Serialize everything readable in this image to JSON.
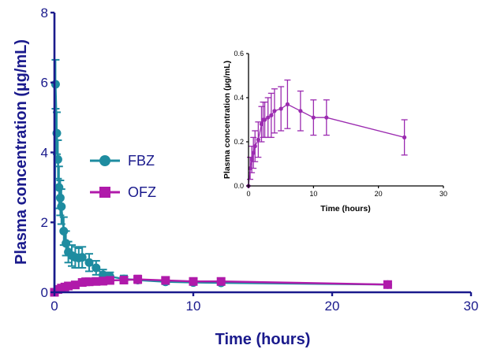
{
  "chart_data": [
    {
      "type": "line",
      "title": "",
      "xlabel": "Time (hours)",
      "ylabel": "Plasma concentration (µg/mL)",
      "xlim": [
        0,
        30
      ],
      "ylim": [
        0,
        8
      ],
      "xticks": [
        0,
        10,
        20,
        30
      ],
      "yticks": [
        0,
        2,
        4,
        6,
        8
      ],
      "grid": false,
      "legend": "center-left",
      "series": [
        {
          "name": "FBZ",
          "color": "#1e8ca0",
          "marker": "circle",
          "x": [
            0,
            0.08,
            0.17,
            0.25,
            0.33,
            0.42,
            0.5,
            0.67,
            0.83,
            1,
            1.25,
            1.5,
            1.75,
            2,
            2.5,
            3,
            3.5,
            4,
            5,
            6,
            8,
            10,
            12,
            24
          ],
          "y": [
            0,
            5.95,
            4.55,
            3.8,
            3.0,
            2.7,
            2.45,
            1.75,
            1.4,
            1.15,
            1.05,
            1.0,
            0.98,
            1.0,
            0.85,
            0.7,
            0.5,
            0.45,
            0.38,
            0.35,
            0.3,
            0.28,
            0.27,
            0.22
          ],
          "error": [
            0,
            0.7,
            0.6,
            0.55,
            0.6,
            0.5,
            0.5,
            0.4,
            0.35,
            0.3,
            0.3,
            0.3,
            0.28,
            0.3,
            0.25,
            0.2,
            0.15,
            0.12,
            0.1,
            0.08,
            0.07,
            0.06,
            0.06,
            0.05
          ]
        },
        {
          "name": "OFZ",
          "color": "#b01aaa",
          "marker": "square",
          "x": [
            0,
            0.25,
            0.5,
            0.75,
            1,
            1.5,
            2,
            2.25,
            2.5,
            3,
            3.5,
            4,
            5,
            6,
            8,
            10,
            12,
            24
          ],
          "y": [
            0,
            0.08,
            0.12,
            0.15,
            0.18,
            0.21,
            0.28,
            0.3,
            0.3,
            0.31,
            0.32,
            0.34,
            0.35,
            0.37,
            0.34,
            0.31,
            0.31,
            0.22
          ],
          "error": [
            0,
            0.05,
            0.06,
            0.07,
            0.07,
            0.08,
            0.08,
            0.08,
            0.08,
            0.09,
            0.1,
            0.1,
            0.1,
            0.11,
            0.09,
            0.08,
            0.08,
            0.08
          ]
        }
      ]
    },
    {
      "type": "line",
      "title": "",
      "xlabel": "Time (hours)",
      "ylabel": "Plasma concentration (µg/mL)",
      "xlim": [
        0,
        30
      ],
      "ylim": [
        0,
        0.6
      ],
      "xticks": [
        0,
        10,
        20,
        30
      ],
      "yticks": [
        0.0,
        0.2,
        0.4,
        0.6
      ],
      "ytick_labels": [
        "0.0",
        "0.2",
        "0.4",
        "0.6"
      ],
      "grid": false,
      "legend": "none",
      "series": [
        {
          "color": "#9b2bb0",
          "marker": "circle",
          "x": [
            0,
            0.25,
            0.5,
            0.75,
            1,
            1.5,
            2,
            2.25,
            2.5,
            3,
            3.5,
            4,
            5,
            6,
            8,
            10,
            12,
            24
          ],
          "y": [
            0,
            0.08,
            0.12,
            0.15,
            0.18,
            0.21,
            0.28,
            0.3,
            0.3,
            0.31,
            0.32,
            0.34,
            0.35,
            0.37,
            0.34,
            0.31,
            0.31,
            0.22
          ],
          "error": [
            0,
            0.05,
            0.06,
            0.07,
            0.07,
            0.08,
            0.08,
            0.08,
            0.08,
            0.09,
            0.1,
            0.1,
            0.1,
            0.11,
            0.09,
            0.08,
            0.08,
            0.08
          ]
        }
      ]
    }
  ]
}
